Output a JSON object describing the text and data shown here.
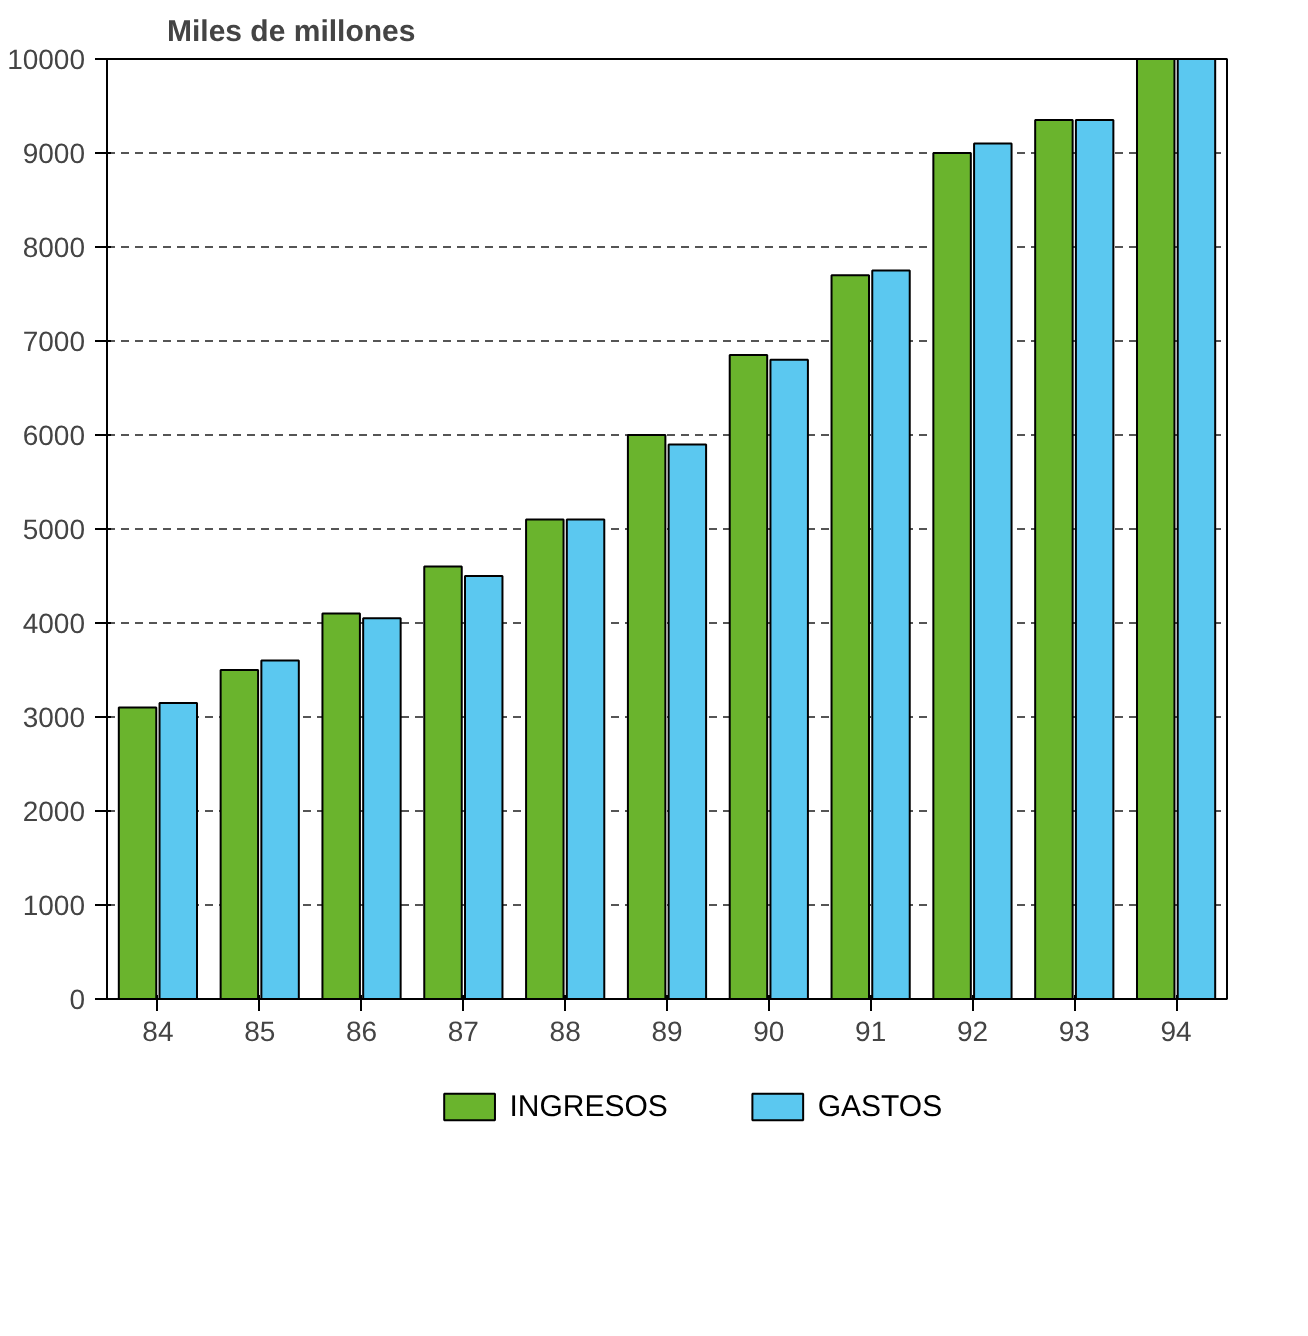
{
  "chart_data": {
    "type": "bar",
    "ylabel": "Miles de millones",
    "categories": [
      "84",
      "85",
      "86",
      "87",
      "88",
      "89",
      "90",
      "91",
      "92",
      "93",
      "94"
    ],
    "series": [
      {
        "name": "INGRESOS",
        "color": "#6ab42d",
        "values": [
          3100,
          3500,
          4100,
          4600,
          5100,
          6000,
          6850,
          7700,
          9000,
          9350,
          10000
        ]
      },
      {
        "name": "GASTOS",
        "color": "#5bc8f0",
        "values": [
          3150,
          3600,
          4050,
          4500,
          5100,
          5900,
          6800,
          7750,
          9100,
          9350,
          10000
        ]
      }
    ],
    "ylim": [
      0,
      10000
    ],
    "yticks": [
      0,
      1000,
      2000,
      3000,
      4000,
      5000,
      6000,
      7000,
      8000,
      9000,
      10000
    ],
    "grid": "y",
    "legend": "bottom"
  }
}
